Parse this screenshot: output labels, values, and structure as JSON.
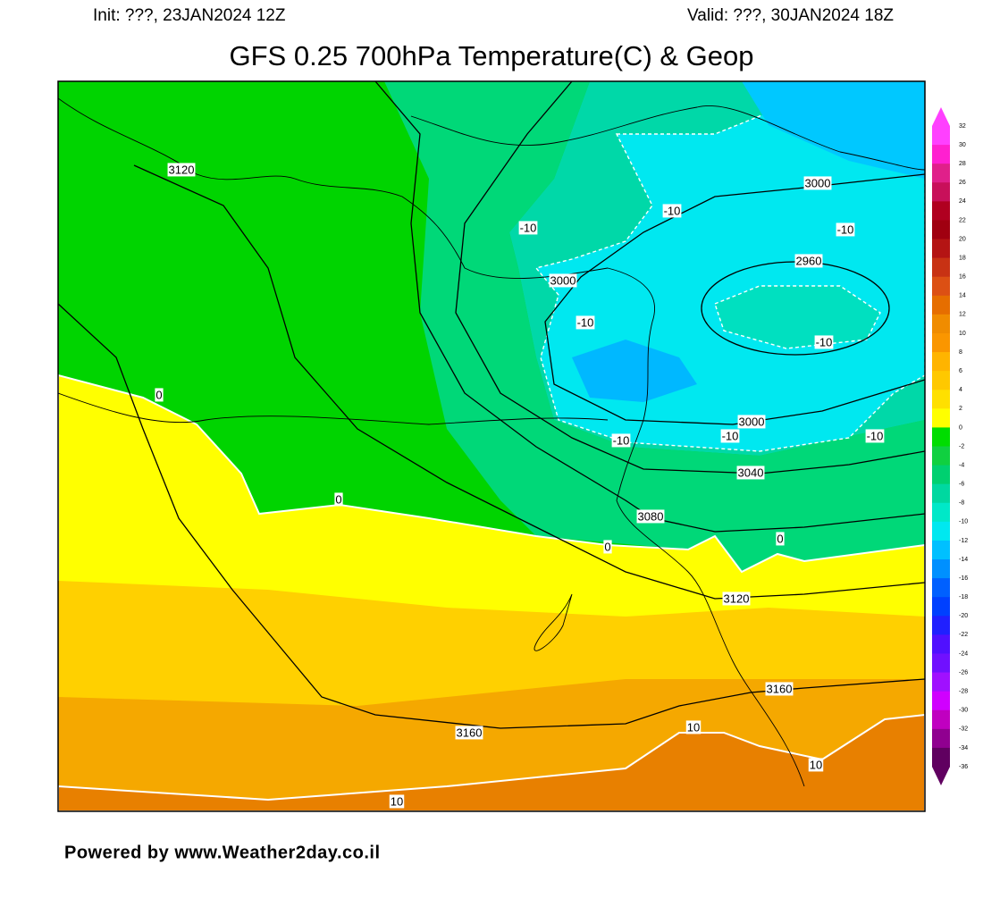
{
  "header": {
    "init": "Init: ???, 23JAN2024 12Z",
    "valid": "Valid: ???, 30JAN2024 18Z",
    "title": "GFS 0.25 700hPa Temperature(C) & Geop"
  },
  "map": {
    "contour_labels": [
      "3120",
      "-10",
      "-10",
      "-10",
      "3000",
      "2960",
      "3000",
      "-10",
      "-10",
      "0",
      "-10",
      "-10",
      "-10",
      "3000",
      "3040",
      "0",
      "3080",
      "0",
      "0",
      "3120",
      "3160",
      "10",
      "3160",
      "10",
      "10"
    ]
  },
  "colorbar": {
    "ticks": [
      32,
      30,
      28,
      26,
      24,
      22,
      20,
      18,
      16,
      14,
      12,
      10,
      8,
      6,
      4,
      2,
      0,
      -2,
      -4,
      -6,
      -8,
      -10,
      -12,
      -14,
      -16,
      -18,
      -20,
      -22,
      -24,
      -26,
      -28,
      -30,
      -32,
      -34,
      -36
    ],
    "colors": [
      "#ff40ff",
      "#ff20d0",
      "#e0208a",
      "#c8105a",
      "#b00020",
      "#a00010",
      "#b41414",
      "#c83214",
      "#dc5014",
      "#e66e00",
      "#f08c00",
      "#fa9600",
      "#ffb400",
      "#ffc800",
      "#ffe000",
      "#ffff00",
      "#00dd00",
      "#10d040",
      "#00d070",
      "#00d8a0",
      "#00e8c8",
      "#00e8f0",
      "#00c0ff",
      "#0090ff",
      "#0060ff",
      "#0040ff",
      "#2020ff",
      "#5010ff",
      "#7010ff",
      "#a010ff",
      "#d000ff",
      "#c000c0",
      "#900090",
      "#600060"
    ]
  },
  "footer": "Powered by www.Weather2day.co.il"
}
